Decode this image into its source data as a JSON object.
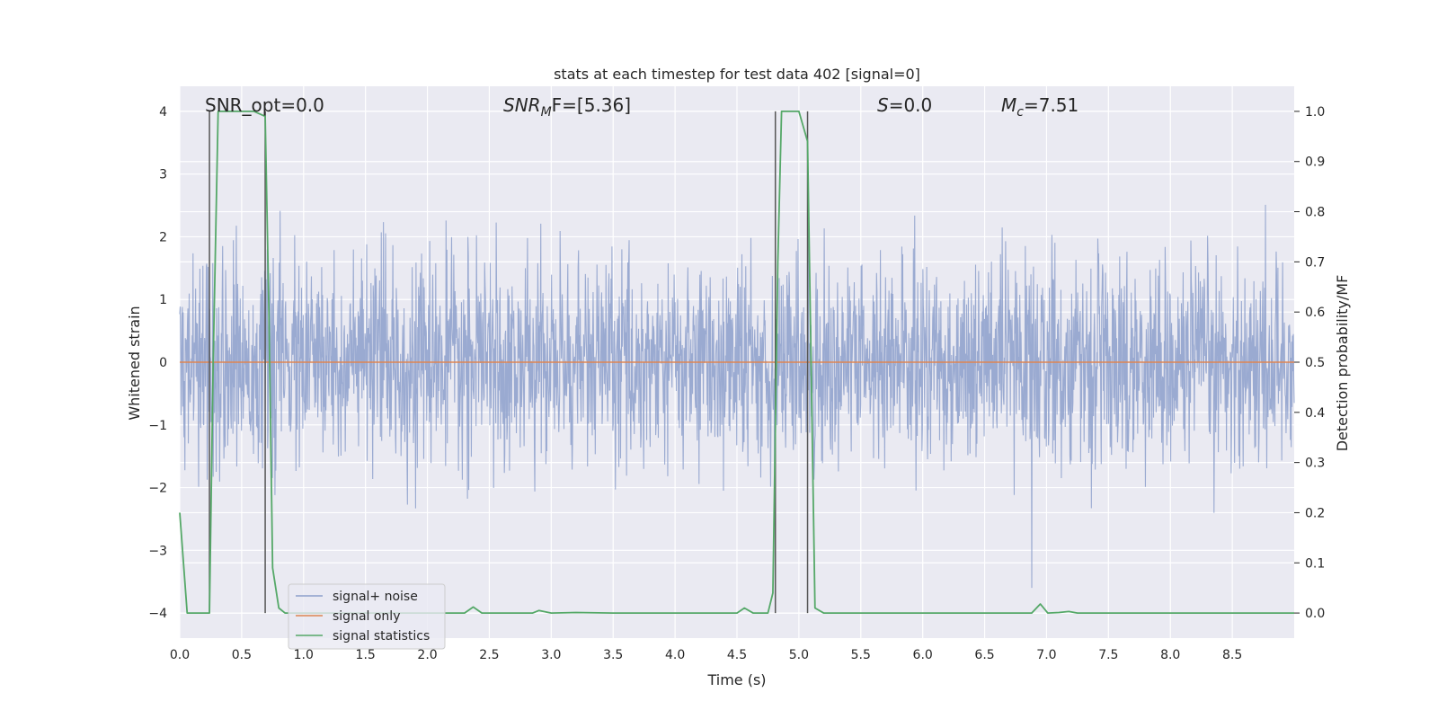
{
  "chart_data": {
    "type": "line",
    "title": "stats at each timestep for test data 402 [signal=0]",
    "xlabel": "Time (s)",
    "ylabel": "Whitened strain",
    "y2label": "Detection probability/MF",
    "xlim": [
      0.0,
      9.0
    ],
    "ylim": [
      -4.4,
      4.4
    ],
    "y2lim": [
      -0.05,
      1.05
    ],
    "x_ticks": [
      "0.0",
      "0.5",
      "1.0",
      "1.5",
      "2.0",
      "2.5",
      "3.0",
      "3.5",
      "4.0",
      "4.5",
      "5.0",
      "5.5",
      "6.0",
      "6.5",
      "7.0",
      "7.5",
      "8.0",
      "8.5"
    ],
    "y_ticks": [
      "4",
      "3",
      "2",
      "1",
      "0",
      "−1",
      "−2",
      "−3",
      "−4"
    ],
    "y2_ticks": [
      "1.0",
      "0.9",
      "0.8",
      "0.7",
      "0.6",
      "0.5",
      "0.4",
      "0.3",
      "0.2",
      "0.1",
      "0.0"
    ],
    "grid": true,
    "legend_position": "lower-left",
    "annotations": {
      "snr_opt": "SNR_opt=0.0",
      "snr_mf_base": "SNR",
      "snr_mf_sub": "M",
      "snr_mf_rest": "F=[5.36]",
      "s_base": "S",
      "s_rest": "=0.0",
      "mc_base": "M",
      "mc_sub": "c",
      "mc_rest": "=7.51"
    },
    "vertical_lines": [
      {
        "x": 0.24,
        "y_top": 4.0,
        "y_bottom": -4.0
      },
      {
        "x": 0.69,
        "y_top": 4.0,
        "y_bottom": -4.0
      },
      {
        "x": 4.81,
        "y_top": 4.0,
        "y_bottom": -4.0
      },
      {
        "x": 5.07,
        "y_top": 4.0,
        "y_bottom": -4.0
      }
    ],
    "series": [
      {
        "name": "signal+ noise",
        "color": "#8c9fcb",
        "axis": "left",
        "kind": "noise",
        "rms": 0.8,
        "clip": 3.6
      },
      {
        "name": "signal only",
        "color": "#dd8452",
        "axis": "left",
        "x": [
          0.0,
          9.0
        ],
        "y": [
          0.0,
          0.0
        ]
      },
      {
        "name": "signal statistics",
        "color": "#55a868",
        "axis": "right",
        "x": [
          0.0,
          0.06,
          0.12,
          0.18,
          0.24,
          0.27,
          0.31,
          0.4,
          0.5,
          0.6,
          0.69,
          0.72,
          0.75,
          0.8,
          0.85,
          1.0,
          1.5,
          2.0,
          2.3,
          2.37,
          2.44,
          2.6,
          2.85,
          2.9,
          3.0,
          3.2,
          3.5,
          4.0,
          4.5,
          4.56,
          4.63,
          4.75,
          4.79,
          4.83,
          4.86,
          4.9,
          5.0,
          5.07,
          5.13,
          5.2,
          5.5,
          6.0,
          6.5,
          6.88,
          6.95,
          7.01,
          7.1,
          7.18,
          7.25,
          7.5,
          8.0,
          8.5,
          9.0
        ],
        "y": [
          0.2,
          0.0,
          0.0,
          0.0,
          0.0,
          0.5,
          1.0,
          1.0,
          1.0,
          1.0,
          0.99,
          0.6,
          0.09,
          0.01,
          0.0,
          0.0,
          0.0,
          0.0,
          0.0,
          0.012,
          0.0,
          0.0,
          0.0,
          0.005,
          0.0,
          0.001,
          0.0,
          0.0,
          0.0,
          0.01,
          0.0,
          0.0,
          0.04,
          0.7,
          1.0,
          1.0,
          1.0,
          0.94,
          0.01,
          0.0,
          0.0,
          0.0,
          0.0,
          0.0,
          0.018,
          0.0,
          0.001,
          0.003,
          0.0,
          0.0,
          0.0,
          0.0,
          0.0
        ]
      }
    ]
  }
}
